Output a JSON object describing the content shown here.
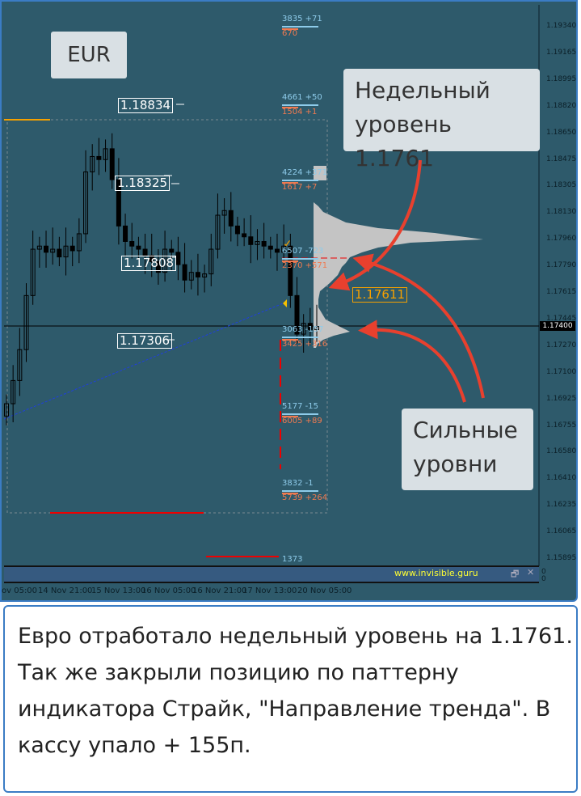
{
  "symbol_label": "EUR",
  "price_axis": [
    "1.19340",
    "1.19165",
    "1.18995",
    "1.18820",
    "1.18650",
    "1.18475",
    "1.18305",
    "1.18130",
    "1.17960",
    "1.17790",
    "1.17615",
    "1.17445",
    "1.17270",
    "1.17100",
    "1.16925",
    "1.16755",
    "1.16580",
    "1.16410",
    "1.16235",
    "1.16065",
    "1.15895"
  ],
  "current_price": "1.17400",
  "time_axis": [
    "ov 05:00",
    "14 Nov 21:00",
    "15 Nov 13:00",
    "16 Nov 05:00",
    "16 Nov 21:00",
    "17 Nov 13:00",
    "20 Nov 05:00"
  ],
  "levels": [
    {
      "label": "1.18834"
    },
    {
      "label": "1.18325"
    },
    {
      "label": "1.17808"
    },
    {
      "label": "1.17306"
    },
    {
      "label": "1.17611"
    }
  ],
  "volume_labels": [
    {
      "buy": "3835 +71",
      "sell": "670"
    },
    {
      "buy": "4661 +50",
      "sell": "1504 +1"
    },
    {
      "buy": "4224 +371",
      "sell": "1617 +7"
    },
    {
      "buy": "6507 -723",
      "sell": "2370 +571"
    },
    {
      "buy": "3063 -157",
      "sell": "3425 +316"
    },
    {
      "buy": "5177 -15",
      "sell": "6005 +89"
    },
    {
      "buy": "3832 -1",
      "sell": "5739 +264"
    },
    {
      "buy": "1373",
      "sell": ""
    }
  ],
  "candle_closes": [
    1.169,
    1.1705,
    1.1725,
    1.176,
    1.179,
    1.1792,
    1.1788,
    1.179,
    1.1785,
    1.1792,
    1.1789,
    1.18,
    1.184,
    1.185,
    1.1848,
    1.1855,
    1.1835,
    1.1805,
    1.1795,
    1.1792,
    1.179,
    1.1786,
    1.1782,
    1.1775,
    1.179,
    1.1788,
    1.178,
    1.177,
    1.1775,
    1.1772,
    1.1774,
    1.179,
    1.1812,
    1.1815,
    1.1805,
    1.18,
    1.1798,
    1.1793,
    1.1795,
    1.1792,
    1.179,
    1.1788,
    1.1792,
    1.176,
    1.1735,
    1.1742,
    1.1738,
    1.174
  ],
  "indicator": {
    "site": "www.invisible.guru",
    "values": [
      "0",
      "0"
    ]
  },
  "callouts": {
    "weekly": "Недельный уровень 1.1761",
    "strong": "Сильные уровни"
  },
  "note": "Евро отработало недельный уровень на 1.1761. Так же закрыли позицию по паттерну индикатора Страйк, \"Направление тренда\". В кассу упало + 155п.",
  "colors": {
    "background": "#2e5a6b",
    "arrow": "#e8402e",
    "level_box": "#ffffff",
    "weekly_level": "#f5a000",
    "buy_volume": "#8ecbea",
    "sell_volume": "#f07a50"
  }
}
